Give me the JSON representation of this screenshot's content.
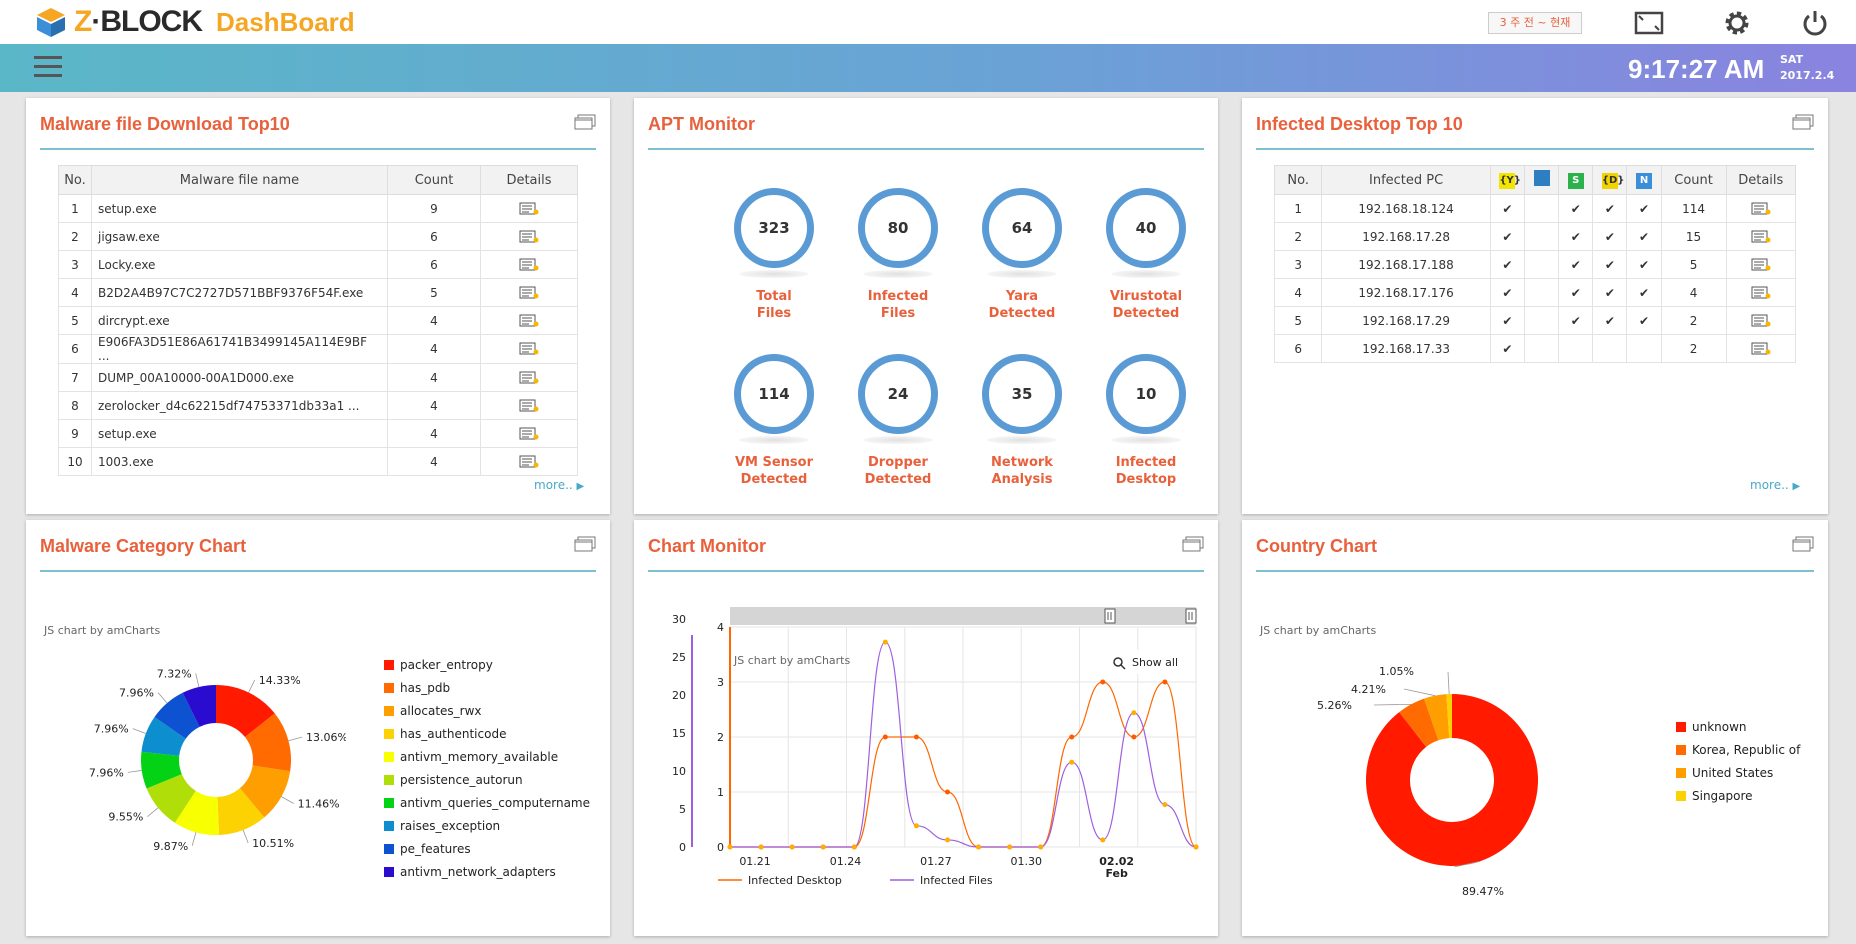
{
  "header": {
    "logo_z": "Z",
    "logo_block": "BLOCK",
    "logo_dash": "DashBoard",
    "period": "3 주 전 ~ 현재",
    "time": "9:17:27 AM",
    "day": "SAT",
    "date": "2017.2.4"
  },
  "malware_top10": {
    "title": "Malware file Download Top10",
    "columns": [
      "No.",
      "Malware file name",
      "Count",
      "Details"
    ],
    "rows": [
      {
        "no": "1",
        "name": "setup.exe",
        "count": "9"
      },
      {
        "no": "2",
        "name": "jigsaw.exe",
        "count": "6"
      },
      {
        "no": "3",
        "name": "Locky.exe",
        "count": "6"
      },
      {
        "no": "4",
        "name": "B2D2A4B97C7C2727D571BBF9376F54F.exe",
        "count": "5"
      },
      {
        "no": "5",
        "name": "dircrypt.exe",
        "count": "4"
      },
      {
        "no": "6",
        "name": "E906FA3D51E86A61741B3499145A114E9BF ...",
        "count": "4"
      },
      {
        "no": "7",
        "name": "DUMP_00A10000-00A1D000.exe",
        "count": "4"
      },
      {
        "no": "8",
        "name": "zerolocker_d4c62215df74753371db33a1 ...",
        "count": "4"
      },
      {
        "no": "9",
        "name": "setup.exe",
        "count": "4"
      },
      {
        "no": "10",
        "name": "1003.exe",
        "count": "4"
      }
    ],
    "more": "more.."
  },
  "apt_monitor": {
    "title": "APT Monitor",
    "items": [
      {
        "value": "323",
        "line1": "Total",
        "line2": "Files"
      },
      {
        "value": "80",
        "line1": "Infected",
        "line2": "Files"
      },
      {
        "value": "64",
        "line1": "Yara",
        "line2": "Detected"
      },
      {
        "value": "40",
        "line1": "Virustotal",
        "line2": "Detected"
      },
      {
        "value": "114",
        "line1": "VM Sensor",
        "line2": "Detected"
      },
      {
        "value": "24",
        "line1": "Dropper",
        "line2": "Detected"
      },
      {
        "value": "35",
        "line1": "Network",
        "line2": "Analysis"
      },
      {
        "value": "10",
        "line1": "Infected",
        "line2": "Desktop"
      }
    ]
  },
  "infected_top10": {
    "title": "Infected Desktop Top 10",
    "columns": [
      "No.",
      "Infected PC",
      "Count",
      "Details"
    ],
    "icon_columns": [
      {
        "label": "{Y}",
        "color": "#f2e600"
      },
      {
        "label": "",
        "color": "#2d7fc1"
      },
      {
        "label": "S",
        "color": "#2bb24c"
      },
      {
        "label": "{D}",
        "color": "#f2d200"
      },
      {
        "label": "N",
        "color": "#3a8fd8"
      }
    ],
    "check": "✔",
    "rows": [
      {
        "no": "1",
        "pc": "192.168.18.124",
        "flags": [
          1,
          0,
          1,
          1,
          1
        ],
        "count": "114"
      },
      {
        "no": "2",
        "pc": "192.168.17.28",
        "flags": [
          1,
          0,
          1,
          1,
          1
        ],
        "count": "15"
      },
      {
        "no": "3",
        "pc": "192.168.17.188",
        "flags": [
          1,
          0,
          1,
          1,
          1
        ],
        "count": "5"
      },
      {
        "no": "4",
        "pc": "192.168.17.176",
        "flags": [
          1,
          0,
          1,
          1,
          1
        ],
        "count": "4"
      },
      {
        "no": "5",
        "pc": "192.168.17.29",
        "flags": [
          1,
          0,
          1,
          1,
          1
        ],
        "count": "2"
      },
      {
        "no": "6",
        "pc": "192.168.17.33",
        "flags": [
          1,
          0,
          0,
          0,
          0
        ],
        "count": "2"
      }
    ],
    "more": "more.."
  },
  "category_chart": {
    "title": "Malware Category Chart",
    "credit": "JS chart by amCharts",
    "chart_data": {
      "type": "pie",
      "categories": [
        "packer_entropy",
        "has_pdb",
        "allocates_rwx",
        "has_authenticode",
        "antivm_memory_available",
        "persistence_autorun",
        "antivm_queries_computername",
        "raises_exception",
        "pe_features",
        "antivm_network_adapters"
      ],
      "values": [
        14.33,
        13.06,
        11.46,
        10.51,
        9.87,
        9.55,
        7.96,
        7.96,
        7.96,
        7.32
      ],
      "labels": [
        "14.33%",
        "13.06%",
        "11.46%",
        "10.51%",
        "9.87%",
        "9.55%",
        "7.96%",
        "7.96%",
        "7.96%",
        "7.32%"
      ],
      "colors": [
        "#ff1a00",
        "#ff6b00",
        "#ff9e01",
        "#fcd202",
        "#f8ff01",
        "#b0de09",
        "#04d215",
        "#0d8ecf",
        "#0d52d1",
        "#2a0cd0"
      ]
    }
  },
  "chart_monitor": {
    "title": "Chart Monitor",
    "credit": "JS chart by amCharts",
    "show_all": "Show all",
    "chart_data": {
      "type": "line",
      "x_ticks": [
        "01.21",
        "01.24",
        "01.27",
        "01.30",
        "02.02"
      ],
      "x_sub": "Feb",
      "left_axis": {
        "ticks": [
          "0",
          "5",
          "10",
          "15",
          "20",
          "25",
          "30"
        ],
        "max": 30
      },
      "right_axis": {
        "ticks": [
          "0",
          "1",
          "2",
          "3",
          "4"
        ],
        "max": 4
      },
      "series": [
        {
          "name": "Infected Desktop",
          "color": "#ff6600",
          "x": [
            0,
            1,
            2,
            3,
            4,
            5,
            6,
            7,
            8,
            9,
            10,
            11,
            12,
            13,
            14,
            15
          ],
          "values": [
            0,
            0,
            0,
            0,
            0,
            2,
            2,
            1,
            0,
            0,
            0,
            2,
            3,
            2,
            3,
            0
          ]
        },
        {
          "name": "Infected Files",
          "color": "#9e5fe0",
          "x": [
            0,
            1,
            2,
            3,
            4,
            5,
            6,
            7,
            8,
            9,
            10,
            11,
            12,
            13,
            14,
            15
          ],
          "values": [
            0,
            0,
            0,
            0,
            0,
            29,
            3,
            1,
            0,
            0,
            0,
            12,
            1,
            19,
            6,
            0
          ]
        }
      ]
    }
  },
  "country_chart": {
    "title": "Country Chart",
    "credit": "JS chart by amCharts",
    "chart_data": {
      "type": "pie",
      "categories": [
        "unknown",
        "Korea, Republic of",
        "United States",
        "Singapore"
      ],
      "values": [
        89.47,
        5.26,
        4.21,
        1.05
      ],
      "labels": [
        "89.47%",
        "5.26%",
        "4.21%",
        "1.05%"
      ],
      "colors": [
        "#ff1a00",
        "#ff6b00",
        "#ff9e01",
        "#fcd202"
      ]
    }
  }
}
